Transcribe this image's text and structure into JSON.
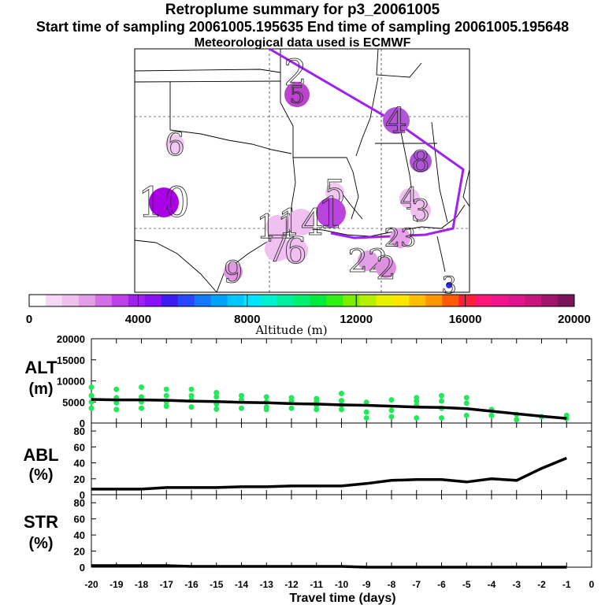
{
  "header": {
    "title": "Retroplume summary for p3_20061005",
    "sampling": "Start time of sampling 20061005.195635     End time of sampling 20061005.195648",
    "met": "Meteorological data used is ECMWF"
  },
  "colorbar": {
    "label": "Altitude (m)",
    "ticks": [
      "0",
      "4000",
      "8000",
      "12000",
      "16000",
      "20000"
    ],
    "colors": [
      "#ffffff",
      "#f6d8f6",
      "#eec0ee",
      "#e29ce8",
      "#d46ee6",
      "#c040ec",
      "#a020f0",
      "#8a10f8",
      "#3c1cf2",
      "#2848ff",
      "#1478ff",
      "#00a2ff",
      "#00c8ff",
      "#00e6ff",
      "#00f0d2",
      "#00f0a0",
      "#00f070",
      "#00ec3a",
      "#30f014",
      "#78f000",
      "#b4f000",
      "#e6f000",
      "#ffe600",
      "#ffbe00",
      "#ff9600",
      "#ff5a00",
      "#ff1e3c",
      "#ff1478",
      "#f0148c",
      "#e0148c",
      "#c8147c",
      "#a0146c",
      "#7c145c"
    ]
  },
  "map": {
    "clusters": [
      {
        "label": "2",
        "color": "#cc55cc"
      },
      {
        "label": "5",
        "color": "#bb44cc"
      },
      {
        "label": "4",
        "color": "#b355d8"
      },
      {
        "label": "6",
        "color": "#f2c8f2"
      },
      {
        "label": "8",
        "color": "#b055d8"
      },
      {
        "label": "10",
        "color": "#aa00e8"
      },
      {
        "label": "5",
        "color": "#f0c8f0"
      },
      {
        "label": "1",
        "color": "#b844dd"
      },
      {
        "label": "11",
        "color": "#f0c0f0"
      },
      {
        "label": "14",
        "color": "#f0c0f0"
      },
      {
        "label": "4",
        "color": "#f0c0f0"
      },
      {
        "label": "3",
        "color": "#f0c0f0"
      },
      {
        "label": "23",
        "color": "#e8a0e8"
      },
      {
        "label": "7",
        "color": "#f0c0f0"
      },
      {
        "label": "6",
        "color": "#f0c0f0"
      },
      {
        "label": "22",
        "color": "#e4a0e4"
      },
      {
        "label": "2",
        "color": "#dd90e0"
      },
      {
        "label": "9",
        "color": "#e098e0"
      },
      {
        "label": "3",
        "color": "#3030ee"
      }
    ]
  },
  "panels": {
    "alt": {
      "name": "ALT",
      "unit": "(m)",
      "ticks": [
        "20000",
        "15000",
        "10000",
        "5000",
        "0"
      ]
    },
    "abl": {
      "name": "ABL",
      "unit": "(%)",
      "ticks": [
        "80",
        "60",
        "40",
        "20",
        "0"
      ]
    },
    "str": {
      "name": "STR",
      "unit": "(%)",
      "ticks": [
        "80",
        "60",
        "40",
        "20",
        "0"
      ]
    }
  },
  "chart_data": {
    "type": "line",
    "xlabel": "Travel time (days)",
    "x_ticks": [
      "-20",
      "-19",
      "-18",
      "-17",
      "-16",
      "-15",
      "-14",
      "-13",
      "-12",
      "-11",
      "-10",
      "-9",
      "-8",
      "-7",
      "-6",
      "-5",
      "-4",
      "-3",
      "-2",
      "-1",
      "0"
    ],
    "xlim": [
      -20,
      0
    ],
    "series": [
      {
        "name": "ALT mean (m)",
        "ylim": [
          0,
          20000
        ],
        "x": [
          -20,
          -19,
          -18,
          -17,
          -16,
          -15,
          -14,
          -13,
          -12,
          -11,
          -10,
          -9,
          -8,
          -7,
          -6,
          -5,
          -4,
          -3,
          -2,
          -1
        ],
        "values": [
          5600,
          5500,
          5500,
          5400,
          5200,
          5100,
          4900,
          4800,
          4600,
          4500,
          4300,
          4200,
          4000,
          3800,
          3700,
          3400,
          2800,
          2200,
          1600,
          1100
        ]
      },
      {
        "name": "ABL (%)",
        "ylim": [
          0,
          90
        ],
        "x": [
          -20,
          -19,
          -18,
          -17,
          -16,
          -15,
          -14,
          -13,
          -12,
          -11,
          -10,
          -9,
          -8,
          -7,
          -6,
          -5,
          -4,
          -3,
          -2,
          -1
        ],
        "values": [
          7,
          7,
          7,
          9,
          9,
          9,
          10,
          10,
          11,
          11,
          11,
          14,
          18,
          19,
          19,
          16,
          20,
          18,
          33,
          46
        ]
      },
      {
        "name": "STR (%)",
        "ylim": [
          0,
          90
        ],
        "x": [
          -20,
          -19,
          -18,
          -17,
          -16,
          -15,
          -14,
          -13,
          -12,
          -11,
          -10,
          -9,
          -8,
          -7,
          -6,
          -5,
          -4,
          -3,
          -2,
          -1
        ],
        "values": [
          2,
          2,
          2,
          2,
          1,
          1,
          1,
          1,
          1,
          1,
          1,
          0,
          0,
          0,
          0,
          0,
          0,
          0,
          0,
          0
        ]
      }
    ],
    "alt_particles": {
      "x": [
        -20,
        -20,
        -20,
        -20,
        -19,
        -19,
        -19,
        -19,
        -18,
        -18,
        -18,
        -18,
        -17,
        -17,
        -17,
        -17,
        -16,
        -16,
        -16,
        -16,
        -15,
        -15,
        -15,
        -15,
        -14,
        -14,
        -14,
        -13,
        -13,
        -13,
        -13,
        -12,
        -12,
        -12,
        -11,
        -11,
        -11,
        -11,
        -10,
        -10,
        -10,
        -10,
        -9,
        -9,
        -9,
        -8,
        -8,
        -8,
        -7,
        -7,
        -7,
        -7,
        -6,
        -6,
        -6,
        -6,
        -5,
        -5,
        -5,
        -4,
        -4,
        -3,
        -3,
        -2,
        -1,
        -1
      ],
      "y": [
        8500,
        6500,
        5000,
        3500,
        8000,
        6000,
        4800,
        3200,
        8500,
        6200,
        5000,
        3500,
        8000,
        6500,
        5000,
        4000,
        8000,
        6500,
        5500,
        3800,
        7200,
        6200,
        4500,
        3300,
        6500,
        5500,
        3500,
        6200,
        5000,
        3800,
        3200,
        6000,
        5200,
        3500,
        5800,
        5000,
        4200,
        3200,
        7000,
        5300,
        4300,
        3200,
        4900,
        2600,
        1200,
        5500,
        3000,
        1500,
        6000,
        5200,
        4200,
        1200,
        6500,
        5200,
        3500,
        1200,
        6000,
        4700,
        1800,
        3200,
        1800,
        2000,
        800,
        1500,
        1800,
        1100
      ]
    },
    "map_trajectory_label": "retroplume backtrajectory"
  }
}
